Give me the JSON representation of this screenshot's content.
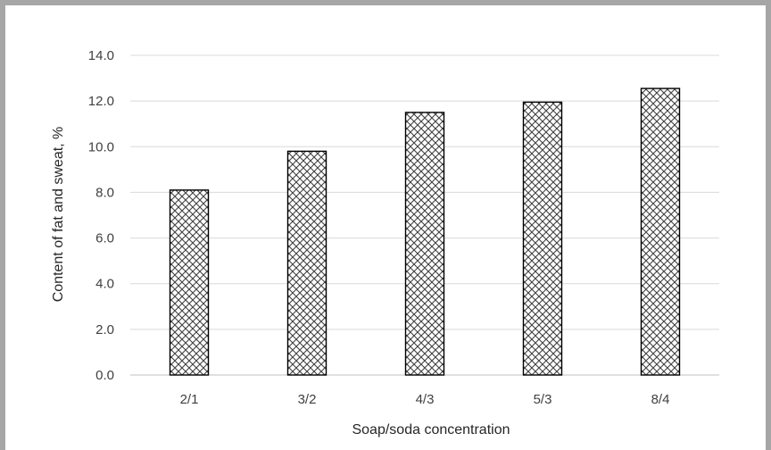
{
  "chart_data": {
    "type": "bar",
    "title": "",
    "xlabel": "Soap/soda concentration",
    "ylabel": "Content of fat and sweat, %",
    "categories": [
      "2/1",
      "3/2",
      "4/3",
      "5/3",
      "8/4"
    ],
    "values": [
      8.1,
      9.8,
      11.5,
      11.95,
      12.55
    ],
    "ylim": [
      0,
      14
    ],
    "y_ticks": [
      "0.0",
      "2.0",
      "4.0",
      "6.0",
      "8.0",
      "10.0",
      "12.0",
      "14.0"
    ],
    "grid": "horizontal",
    "legend": "none",
    "bar_pattern": "crosshatch",
    "colors": {
      "frame": "#a6a6a6",
      "grid": "#d9d9d9",
      "bar_outline": "#000000",
      "hatch": "#404040",
      "text": "#404040"
    }
  }
}
